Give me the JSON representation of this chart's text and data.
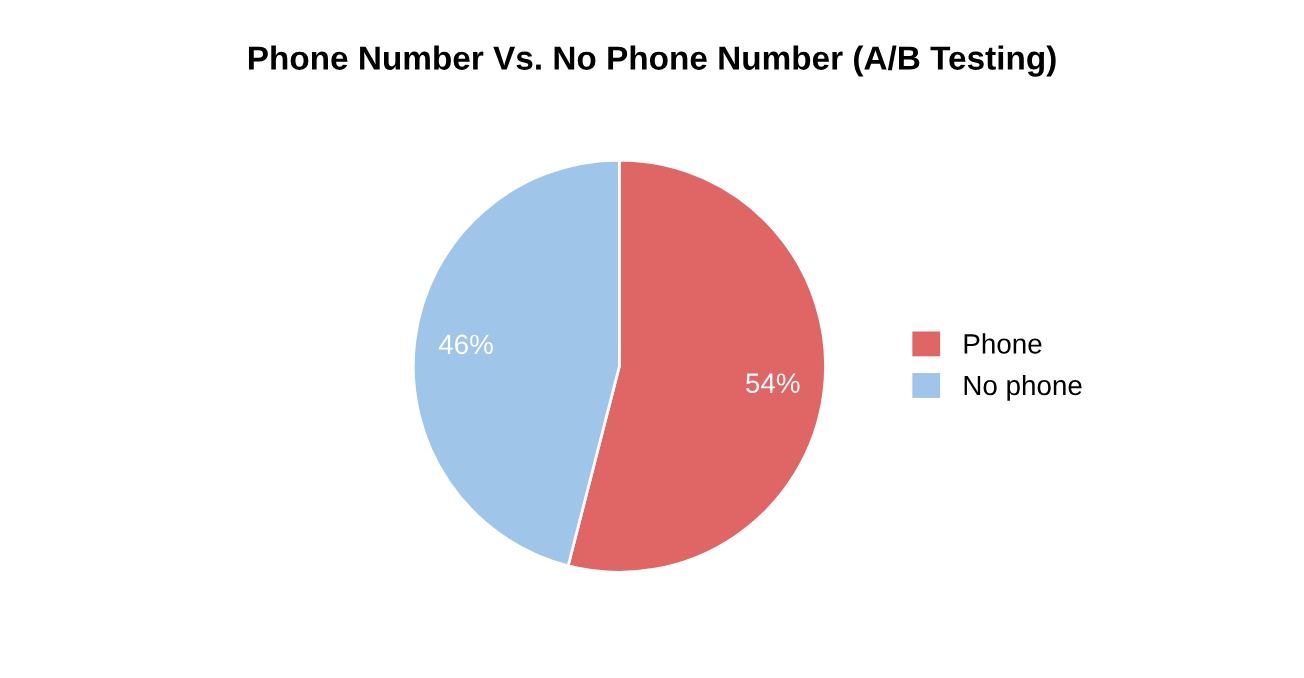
{
  "chart_data": {
    "type": "pie",
    "title": "Phone Number Vs. No Phone Number (A/B Testing)",
    "categories": [
      "Phone",
      "No phone"
    ],
    "values": [
      54,
      46
    ],
    "value_labels": [
      "54%",
      "46%"
    ],
    "colors": [
      "#e06666",
      "#9fc5e8"
    ],
    "legend": "right"
  }
}
